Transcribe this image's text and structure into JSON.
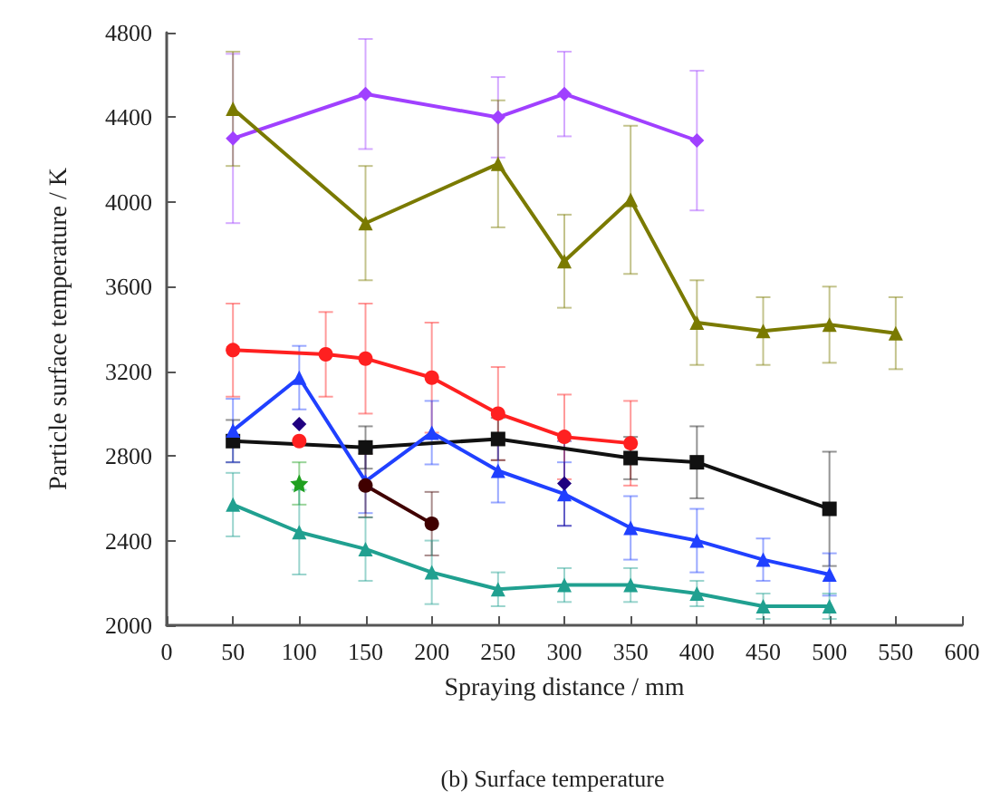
{
  "chart_data": {
    "type": "line",
    "xlabel": "Spraying distance / mm",
    "ylabel": "Particle surface temperature / K",
    "annotations": [
      "(b) Surface temperature"
    ],
    "xlim": [
      0,
      600
    ],
    "xticks": [
      0,
      50,
      100,
      150,
      200,
      250,
      300,
      350,
      400,
      450,
      500,
      550,
      600
    ],
    "ylim": [
      2000,
      4800
    ],
    "yticks": [
      2000,
      2400,
      2800,
      3200,
      3600,
      4000,
      4400,
      4800
    ],
    "grid": false,
    "line_style": "solid",
    "series": [
      {
        "color": "#a040ff",
        "marker": "diamond",
        "x": [
          50,
          150,
          250,
          300,
          400
        ],
        "values": [
          4300,
          4510,
          4400,
          4510,
          4290
        ],
        "errors": [
          400,
          260,
          190,
          200,
          330
        ]
      },
      {
        "color": "#7a7a00",
        "marker": "triangle",
        "x": [
          50,
          150,
          250,
          300,
          350,
          400,
          450,
          500,
          550
        ],
        "values": [
          4440,
          3900,
          4180,
          3720,
          4010,
          3430,
          3390,
          3420,
          3380
        ],
        "errors": [
          270,
          270,
          300,
          220,
          350,
          200,
          160,
          180,
          170
        ]
      },
      {
        "color": "#ff2020",
        "marker": "circle",
        "x": [
          50,
          120,
          150,
          200,
          250,
          300,
          350
        ],
        "values": [
          3300,
          3280,
          3260,
          3170,
          3000,
          2890,
          2860
        ],
        "errors": [
          220,
          200,
          260,
          260,
          220,
          200,
          200
        ]
      },
      {
        "color": "#111111",
        "marker": "square",
        "x": [
          50,
          150,
          250,
          350,
          400,
          500
        ],
        "values": [
          2870,
          2840,
          2880,
          2790,
          2770,
          2550
        ],
        "errors": [
          100,
          100,
          100,
          100,
          170,
          270
        ]
      },
      {
        "color": "#2040ff",
        "marker": "triangle",
        "x": [
          50,
          100,
          150,
          200,
          250,
          300,
          350,
          400,
          450,
          500
        ],
        "values": [
          2920,
          3170,
          2680,
          2910,
          2730,
          2620,
          2460,
          2400,
          2310,
          2240
        ],
        "errors": [
          150,
          150,
          150,
          150,
          150,
          150,
          150,
          150,
          100,
          100
        ]
      },
      {
        "type": "scatter",
        "color": "#ff2020",
        "marker": "circle",
        "x": [
          100
        ],
        "values": [
          2870
        ],
        "errors": [
          null
        ]
      },
      {
        "type": "scatter",
        "color": "#200080",
        "marker": "diamond",
        "x": [
          100,
          300
        ],
        "values": [
          2950,
          2670
        ],
        "errors": [
          null,
          200
        ]
      },
      {
        "color": "#400000",
        "marker": "circle",
        "x": [
          150,
          200
        ],
        "values": [
          2660,
          2480
        ],
        "errors": [
          150,
          150
        ]
      },
      {
        "type": "scatter",
        "color": "#20a020",
        "marker": "star",
        "x": [
          100
        ],
        "values": [
          2670
        ],
        "errors": [
          100
        ]
      },
      {
        "color": "#20a090",
        "marker": "triangle",
        "x": [
          50,
          100,
          150,
          200,
          250,
          300,
          350,
          400,
          450,
          500
        ],
        "values": [
          2570,
          2440,
          2360,
          2250,
          2170,
          2190,
          2190,
          2150,
          2090,
          2090
        ],
        "errors": [
          150,
          200,
          150,
          150,
          80,
          80,
          80,
          60,
          60,
          60
        ]
      }
    ]
  }
}
